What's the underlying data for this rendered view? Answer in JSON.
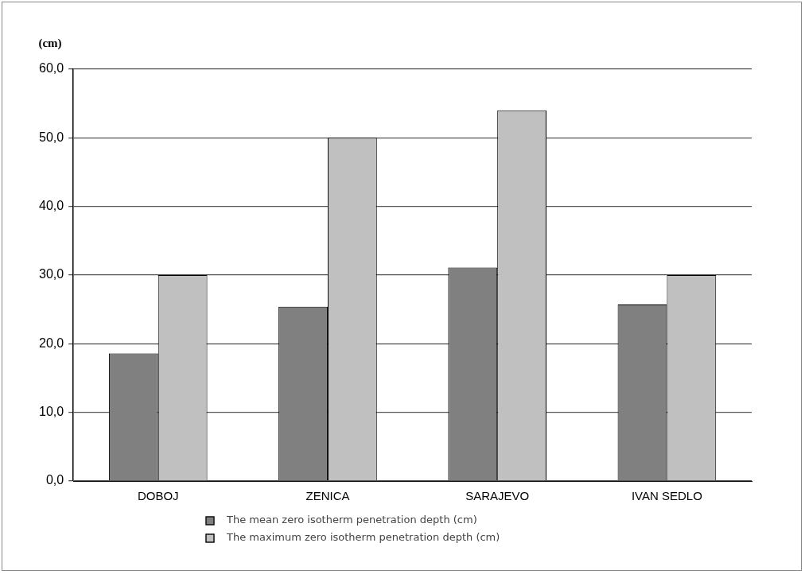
{
  "chart_data": {
    "type": "bar",
    "ylabel": "(cm)",
    "categories": [
      "DOBOJ",
      "ZENICA",
      "SARAJEVO",
      "IVAN SEDLO"
    ],
    "series": [
      {
        "name": "The mean zero isotherm penetration depth (cm)",
        "color": "#808080",
        "values": [
          18.6,
          25.4,
          31.1,
          25.7
        ]
      },
      {
        "name": "The maximum zero isotherm penetration depth (cm)",
        "color": "#c0c0c0",
        "values": [
          30,
          50,
          54,
          30
        ]
      }
    ],
    "ylim": [
      0,
      60
    ],
    "yticks": [
      {
        "value": 0,
        "label": "0,0"
      },
      {
        "value": 10,
        "label": "10,0"
      },
      {
        "value": 20,
        "label": "20,0"
      },
      {
        "value": 30,
        "label": "30,0"
      },
      {
        "value": 40,
        "label": "40,0"
      },
      {
        "value": 50,
        "label": "50,0"
      },
      {
        "value": 60,
        "label": "60,0"
      }
    ],
    "grid": "y",
    "legend": "bottom"
  }
}
